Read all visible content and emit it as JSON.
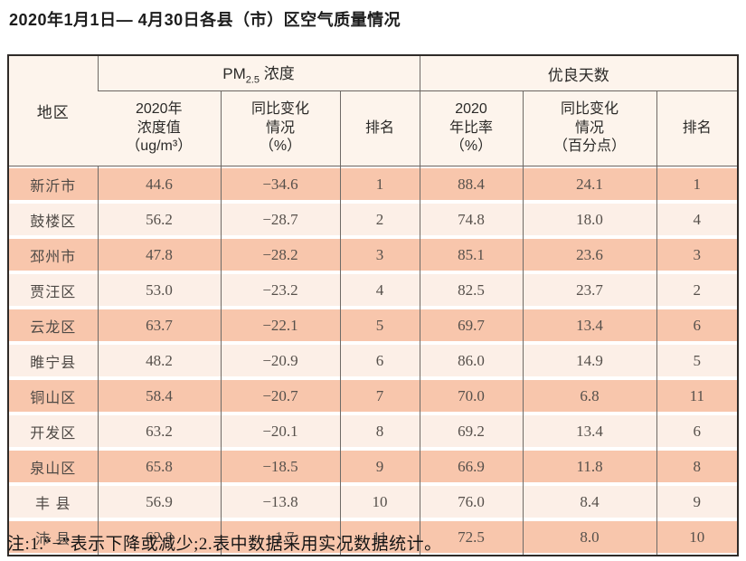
{
  "title": "2020年1月1日— 4月30日各县（市）区空气质量情况",
  "note": "注:1.“−”表示下降或减少;2.表中数据采用实况数据统计。",
  "table": {
    "header": {
      "region": "地区",
      "pm_prefix": "PM",
      "pm_sub": "2.5",
      "pm_suffix": " 浓度",
      "good_days_group": "优良天数",
      "col_concentration": "2020年\n浓度值\n（ug/m³）",
      "col_change_pct": "同比变化\n情况\n（%）",
      "col_rank_pm": "排名",
      "col_ratio": "2020\n年比率\n（%）",
      "col_change_pts": "同比变化\n情况\n（百分点）",
      "col_rank_days": "排名"
    },
    "rows": [
      {
        "region": "新沂市",
        "pm_value": "44.6",
        "pm_change": "−34.6",
        "pm_rank": "1",
        "ratio": "88.4",
        "ratio_change": "24.1",
        "ratio_rank": "1"
      },
      {
        "region": "鼓楼区",
        "pm_value": "56.2",
        "pm_change": "−28.7",
        "pm_rank": "2",
        "ratio": "74.8",
        "ratio_change": "18.0",
        "ratio_rank": "4"
      },
      {
        "region": "邳州市",
        "pm_value": "47.8",
        "pm_change": "−28.2",
        "pm_rank": "3",
        "ratio": "85.1",
        "ratio_change": "23.6",
        "ratio_rank": "3"
      },
      {
        "region": "贾汪区",
        "pm_value": "53.0",
        "pm_change": "−23.2",
        "pm_rank": "4",
        "ratio": "82.5",
        "ratio_change": "23.7",
        "ratio_rank": "2"
      },
      {
        "region": "云龙区",
        "pm_value": "63.7",
        "pm_change": "−22.1",
        "pm_rank": "5",
        "ratio": "69.7",
        "ratio_change": "13.4",
        "ratio_rank": "6"
      },
      {
        "region": "睢宁县",
        "pm_value": "48.2",
        "pm_change": "−20.9",
        "pm_rank": "6",
        "ratio": "86.0",
        "ratio_change": "14.9",
        "ratio_rank": "5"
      },
      {
        "region": "铜山区",
        "pm_value": "58.4",
        "pm_change": "−20.7",
        "pm_rank": "7",
        "ratio": "70.0",
        "ratio_change": "6.8",
        "ratio_rank": "11"
      },
      {
        "region": "开发区",
        "pm_value": "63.2",
        "pm_change": "−20.1",
        "pm_rank": "8",
        "ratio": "69.2",
        "ratio_change": "13.4",
        "ratio_rank": "6"
      },
      {
        "region": "泉山区",
        "pm_value": "65.8",
        "pm_change": "−18.5",
        "pm_rank": "9",
        "ratio": "66.9",
        "ratio_change": "11.8",
        "ratio_rank": "8"
      },
      {
        "region": "丰 县",
        "pm_value": "56.9",
        "pm_change": "−13.8",
        "pm_rank": "10",
        "ratio": "76.0",
        "ratio_change": "8.4",
        "ratio_rank": "9"
      },
      {
        "region": "沛 县",
        "pm_value": "62.8",
        "pm_change": "−1.7",
        "pm_rank": "11",
        "ratio": "72.5",
        "ratio_change": "8.0",
        "ratio_rank": "10"
      }
    ]
  }
}
